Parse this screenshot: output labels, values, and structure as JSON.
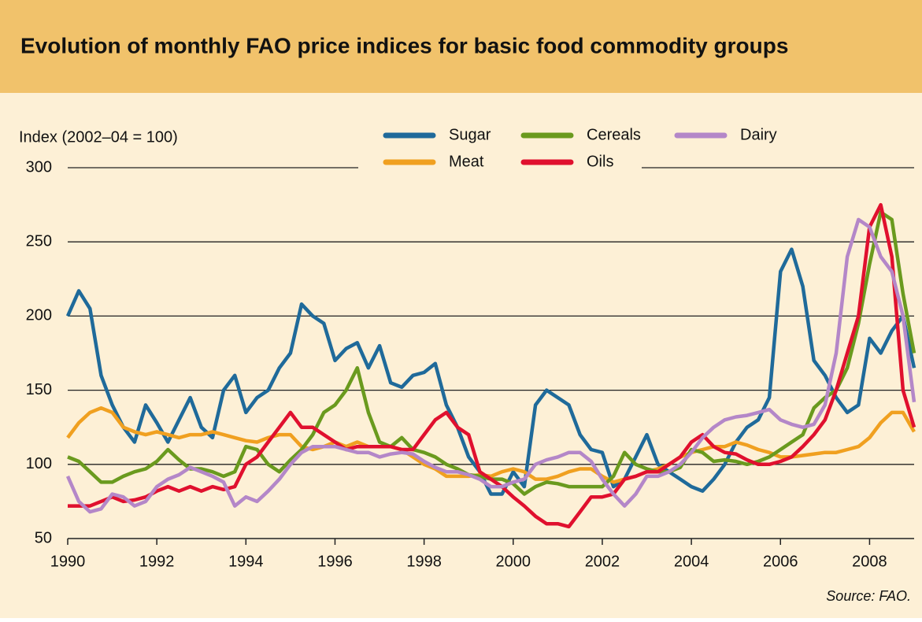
{
  "chart_data": {
    "type": "line",
    "title": "Evolution of monthly FAO price indices for basic food commodity groups",
    "y_label": "Index (2002–04 = 100)",
    "source": "Source: FAO.",
    "x": [
      1990,
      1990.25,
      1990.5,
      1990.75,
      1991,
      1991.25,
      1991.5,
      1991.75,
      1992,
      1992.25,
      1992.5,
      1992.75,
      1993,
      1993.25,
      1993.5,
      1993.75,
      1994,
      1994.25,
      1994.5,
      1994.75,
      1995,
      1995.25,
      1995.5,
      1995.75,
      1996,
      1996.25,
      1996.5,
      1996.75,
      1997,
      1997.25,
      1997.5,
      1997.75,
      1998,
      1998.25,
      1998.5,
      1998.75,
      1999,
      1999.25,
      1999.5,
      1999.75,
      2000,
      2000.25,
      2000.5,
      2000.75,
      2001,
      2001.25,
      2001.5,
      2001.75,
      2002,
      2002.25,
      2002.5,
      2002.75,
      2003,
      2003.25,
      2003.5,
      2003.75,
      2004,
      2004.25,
      2004.5,
      2004.75,
      2005,
      2005.25,
      2005.5,
      2005.75,
      2006,
      2006.25,
      2006.5,
      2006.75,
      2007,
      2007.25,
      2007.5,
      2007.75,
      2008,
      2008.25,
      2008.5,
      2008.75,
      2009
    ],
    "series": [
      {
        "name": "Sugar",
        "color": "#1f6a9a",
        "values": [
          200,
          217,
          205,
          160,
          140,
          125,
          115,
          140,
          128,
          115,
          130,
          145,
          125,
          118,
          150,
          160,
          135,
          145,
          150,
          165,
          175,
          208,
          200,
          195,
          170,
          178,
          182,
          165,
          180,
          155,
          152,
          160,
          162,
          168,
          140,
          125,
          105,
          95,
          80,
          80,
          95,
          85,
          140,
          150,
          145,
          140,
          120,
          110,
          108,
          85,
          90,
          105,
          120,
          100,
          95,
          90,
          85,
          82,
          90,
          100,
          115,
          125,
          130,
          145,
          230,
          245,
          220,
          170,
          160,
          145,
          135,
          140,
          185,
          175,
          190,
          200,
          165
        ]
      },
      {
        "name": "Meat",
        "color": "#f0a020",
        "values": [
          118,
          128,
          135,
          138,
          135,
          125,
          122,
          120,
          122,
          120,
          118,
          120,
          120,
          122,
          120,
          118,
          116,
          115,
          118,
          120,
          120,
          112,
          110,
          112,
          115,
          112,
          115,
          112,
          112,
          112,
          110,
          105,
          100,
          97,
          92,
          92,
          92,
          93,
          92,
          95,
          97,
          95,
          90,
          90,
          92,
          95,
          97,
          97,
          92,
          88,
          90,
          92,
          95,
          97,
          100,
          105,
          108,
          110,
          112,
          112,
          115,
          113,
          110,
          108,
          105,
          105,
          106,
          107,
          108,
          108,
          110,
          112,
          118,
          128,
          135,
          135,
          122
        ]
      },
      {
        "name": "Cereals",
        "color": "#6a9a1e",
        "values": [
          105,
          102,
          95,
          88,
          88,
          92,
          95,
          97,
          102,
          110,
          103,
          97,
          97,
          95,
          92,
          95,
          112,
          110,
          100,
          95,
          103,
          110,
          120,
          135,
          140,
          150,
          165,
          135,
          115,
          112,
          118,
          110,
          108,
          105,
          100,
          97,
          93,
          92,
          90,
          90,
          87,
          80,
          85,
          88,
          87,
          85,
          85,
          85,
          85,
          92,
          108,
          100,
          97,
          95,
          95,
          98,
          110,
          108,
          102,
          103,
          102,
          100,
          102,
          105,
          110,
          115,
          120,
          138,
          145,
          150,
          165,
          195,
          235,
          270,
          265,
          215,
          175
        ]
      },
      {
        "name": "Oils",
        "color": "#e0102e",
        "values": [
          72,
          72,
          72,
          75,
          78,
          75,
          76,
          78,
          82,
          85,
          82,
          85,
          82,
          85,
          83,
          85,
          100,
          105,
          115,
          125,
          135,
          125,
          125,
          120,
          115,
          110,
          112,
          112,
          112,
          112,
          110,
          110,
          120,
          130,
          135,
          125,
          120,
          95,
          90,
          85,
          78,
          72,
          65,
          60,
          60,
          58,
          68,
          78,
          78,
          80,
          90,
          92,
          95,
          95,
          100,
          105,
          115,
          120,
          112,
          108,
          107,
          103,
          100,
          100,
          102,
          105,
          112,
          120,
          130,
          150,
          175,
          200,
          260,
          275,
          240,
          150,
          125
        ]
      },
      {
        "name": "Dairy",
        "color": "#b487c8",
        "values": [
          92,
          75,
          68,
          70,
          80,
          78,
          72,
          75,
          85,
          90,
          93,
          98,
          95,
          92,
          88,
          72,
          78,
          75,
          82,
          90,
          100,
          108,
          112,
          112,
          112,
          110,
          108,
          108,
          105,
          107,
          108,
          107,
          102,
          98,
          95,
          95,
          93,
          90,
          85,
          85,
          88,
          90,
          100,
          103,
          105,
          108,
          108,
          102,
          90,
          80,
          72,
          80,
          92,
          92,
          95,
          100,
          108,
          118,
          125,
          130,
          132,
          133,
          135,
          137,
          130,
          127,
          125,
          127,
          140,
          175,
          240,
          265,
          260,
          240,
          230,
          200,
          142
        ]
      }
    ],
    "xlim": [
      1990,
      2009
    ],
    "xticks": [
      1990,
      1992,
      1994,
      1996,
      1998,
      2000,
      2002,
      2004,
      2006,
      2008
    ],
    "ylim": [
      50,
      300
    ],
    "yticks": [
      50,
      100,
      150,
      200,
      250,
      300
    ],
    "grid": true
  }
}
